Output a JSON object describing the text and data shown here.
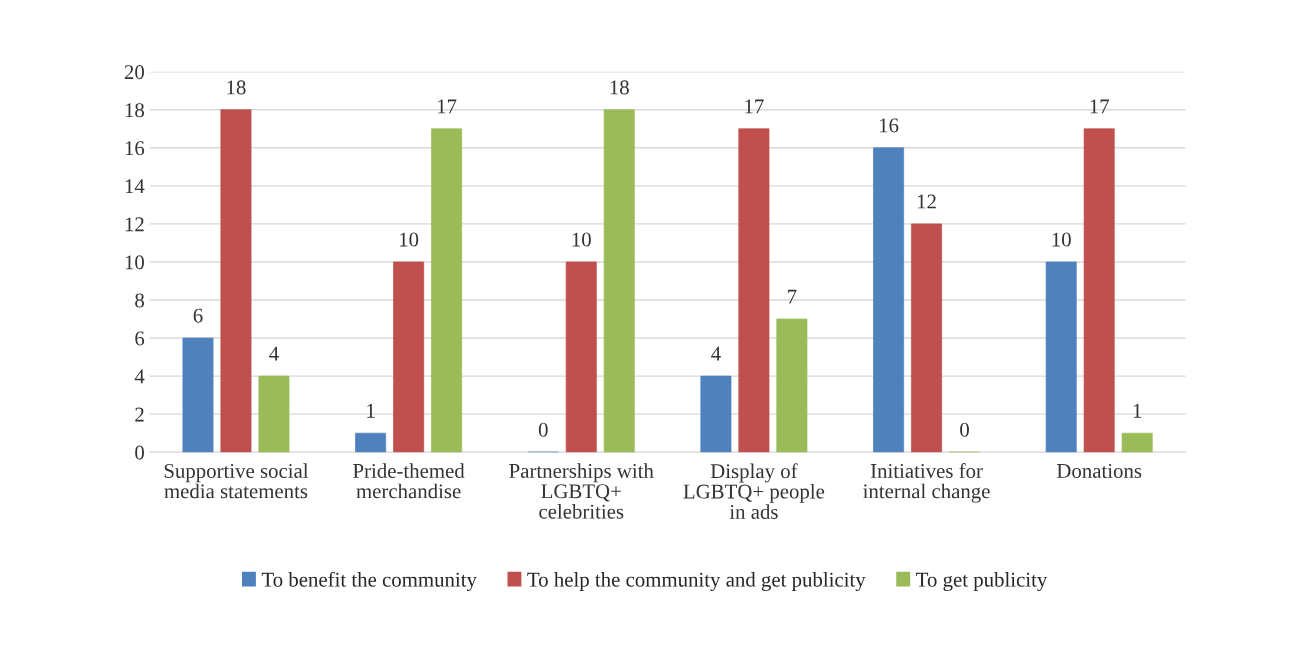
{
  "chart_data": {
    "type": "bar",
    "categories": [
      "Supportive social\nmedia statements",
      "Pride-themed\nmerchandise",
      "Partnerships with\nLGBTQ+\ncelebrities",
      "Display of\nLGBTQ+ people\nin ads",
      "Initiatives for\ninternal change",
      "Donations"
    ],
    "series": [
      {
        "name": "To benefit the community",
        "color": "#4f81bd",
        "values": [
          6,
          1,
          0,
          4,
          16,
          10
        ]
      },
      {
        "name": "To help the community and get publicity",
        "color": "#c0504d",
        "values": [
          18,
          10,
          10,
          17,
          12,
          17
        ]
      },
      {
        "name": "To get publicity",
        "color": "#9bbb59",
        "values": [
          4,
          17,
          18,
          7,
          0,
          1
        ]
      }
    ],
    "ylim": [
      0,
      20
    ],
    "yticks": [
      0,
      2,
      4,
      6,
      8,
      10,
      12,
      14,
      16,
      18,
      20
    ],
    "grid": "y",
    "legend": "bottom",
    "data_labels": true
  }
}
